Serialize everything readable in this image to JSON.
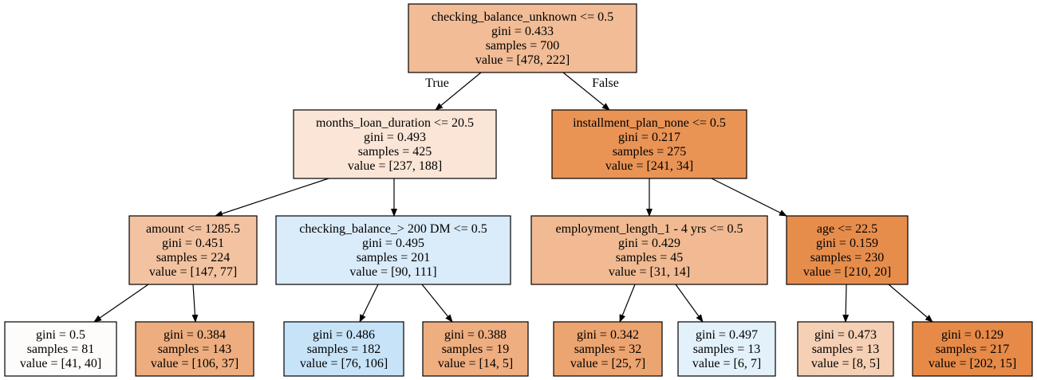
{
  "nodes": [
    {
      "id": "n0",
      "lines": [
        "checking_balance_unknown <= 0.5",
        "gini = 0.433",
        "samples = 700",
        "value = [478, 222]"
      ],
      "fill": "#f1bc96"
    },
    {
      "id": "n1",
      "lines": [
        "months_loan_duration <= 20.5",
        "gini = 0.493",
        "samples = 425",
        "value = [237, 188]"
      ],
      "fill": "#fbe5d6"
    },
    {
      "id": "n2",
      "lines": [
        "installment_plan_none <= 0.5",
        "gini = 0.217",
        "samples = 275",
        "value = [241, 34]"
      ],
      "fill": "#e99355"
    },
    {
      "id": "n3",
      "lines": [
        "amount <= 1285.5",
        "gini = 0.451",
        "samples = 224",
        "value = [147, 77]"
      ],
      "fill": "#f3c3a1"
    },
    {
      "id": "n4",
      "lines": [
        "checking_balance_> 200 DM <= 0.5",
        "gini = 0.495",
        "samples = 201",
        "value = [90, 111]"
      ],
      "fill": "#daebfa"
    },
    {
      "id": "n5",
      "lines": [
        "employment_length_1 - 4 yrs <= 0.5",
        "gini = 0.429",
        "samples = 45",
        "value = [31, 14]"
      ],
      "fill": "#f1ba92"
    },
    {
      "id": "n6",
      "lines": [
        "age <= 22.5",
        "gini = 0.159",
        "samples = 230",
        "value = [210, 20]"
      ],
      "fill": "#e78d4c"
    },
    {
      "id": "n7",
      "lines": [
        "gini = 0.5",
        "samples = 81",
        "value = [41, 40]"
      ],
      "fill": "#fefcfa"
    },
    {
      "id": "n8",
      "lines": [
        "gini = 0.384",
        "samples = 143",
        "value = [106, 37]"
      ],
      "fill": "#eead7e"
    },
    {
      "id": "n9",
      "lines": [
        "gini = 0.486",
        "samples = 182",
        "value = [76, 106]"
      ],
      "fill": "#c7e3f8"
    },
    {
      "id": "n10",
      "lines": [
        "gini = 0.388",
        "samples = 19",
        "value = [14, 5]"
      ],
      "fill": "#eeae80"
    },
    {
      "id": "n11",
      "lines": [
        "gini = 0.342",
        "samples = 32",
        "value = [25, 7]"
      ],
      "fill": "#eca470"
    },
    {
      "id": "n12",
      "lines": [
        "gini = 0.497",
        "samples = 13",
        "value = [6, 7]"
      ],
      "fill": "#e3f1fb"
    },
    {
      "id": "n13",
      "lines": [
        "gini = 0.473",
        "samples = 13",
        "value = [8, 5]"
      ],
      "fill": "#f5d0b5"
    },
    {
      "id": "n14",
      "lines": [
        "gini = 0.129",
        "samples = 217",
        "value = [202, 15]"
      ],
      "fill": "#e78a48"
    }
  ],
  "edges": [
    {
      "from": "n0",
      "to": "n1",
      "label": "True"
    },
    {
      "from": "n0",
      "to": "n2",
      "label": "False"
    },
    {
      "from": "n1",
      "to": "n3",
      "label": ""
    },
    {
      "from": "n1",
      "to": "n4",
      "label": ""
    },
    {
      "from": "n2",
      "to": "n5",
      "label": ""
    },
    {
      "from": "n2",
      "to": "n6",
      "label": ""
    },
    {
      "from": "n3",
      "to": "n7",
      "label": ""
    },
    {
      "from": "n3",
      "to": "n8",
      "label": ""
    },
    {
      "from": "n4",
      "to": "n9",
      "label": ""
    },
    {
      "from": "n4",
      "to": "n10",
      "label": ""
    },
    {
      "from": "n5",
      "to": "n11",
      "label": ""
    },
    {
      "from": "n5",
      "to": "n12",
      "label": ""
    },
    {
      "from": "n6",
      "to": "n13",
      "label": ""
    },
    {
      "from": "n6",
      "to": "n14",
      "label": ""
    }
  ]
}
